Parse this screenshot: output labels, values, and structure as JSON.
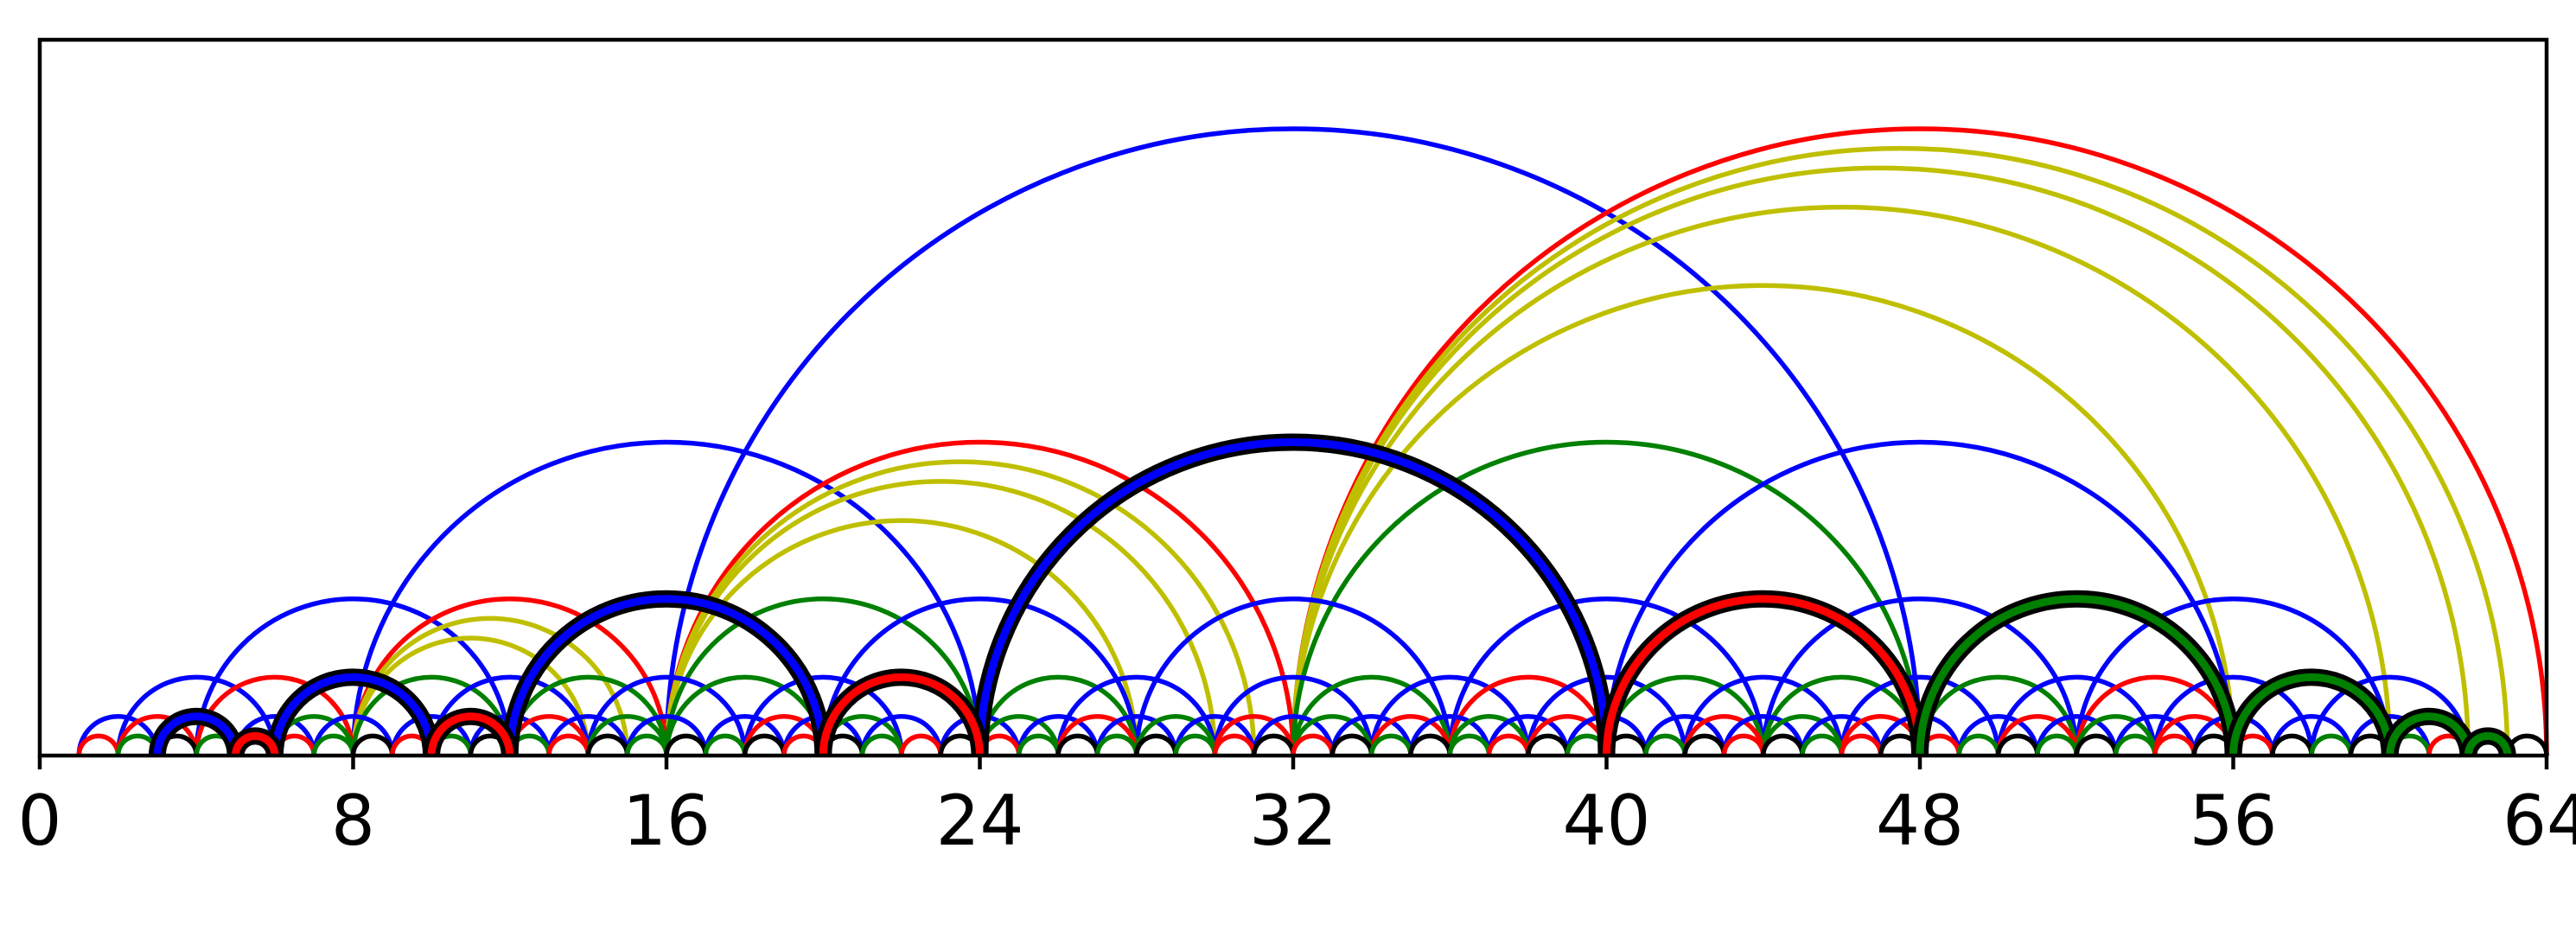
{
  "chart_data": {
    "type": "arc-diagram",
    "title": "",
    "xlabel": "",
    "ylabel": "",
    "xlim": [
      0,
      64
    ],
    "xticks": [
      0,
      8,
      16,
      24,
      32,
      40,
      48,
      56,
      64
    ],
    "xtick_labels": [
      "0",
      "8",
      "16",
      "24",
      "32",
      "40",
      "48",
      "56",
      "64"
    ],
    "colors": {
      "blue": "#0000ff",
      "red": "#ff0000",
      "green": "#008000",
      "yellow": "#bfbf00",
      "black": "#000000"
    },
    "regular_arcs": [
      {
        "from": 16,
        "to": 48,
        "color": "blue"
      },
      {
        "from": 32,
        "to": 64,
        "color": "red"
      },
      {
        "from": 32,
        "to": 63,
        "color": "yellow"
      },
      {
        "from": 32,
        "to": 62,
        "color": "yellow"
      },
      {
        "from": 32,
        "to": 60,
        "color": "yellow"
      },
      {
        "from": 32,
        "to": 56,
        "color": "yellow"
      },
      {
        "from": 8,
        "to": 24,
        "color": "blue"
      },
      {
        "from": 16,
        "to": 32,
        "color": "red"
      },
      {
        "from": 16,
        "to": 31,
        "color": "yellow"
      },
      {
        "from": 16,
        "to": 30,
        "color": "yellow"
      },
      {
        "from": 16,
        "to": 28,
        "color": "yellow"
      },
      {
        "from": 32,
        "to": 48,
        "color": "green"
      },
      {
        "from": 40,
        "to": 56,
        "color": "blue"
      },
      {
        "from": 4,
        "to": 12,
        "color": "blue"
      },
      {
        "from": 8,
        "to": 16,
        "color": "red"
      },
      {
        "from": 8,
        "to": 15,
        "color": "yellow"
      },
      {
        "from": 8,
        "to": 14,
        "color": "yellow"
      },
      {
        "from": 16,
        "to": 24,
        "color": "green"
      },
      {
        "from": 20,
        "to": 28,
        "color": "blue"
      },
      {
        "from": 28,
        "to": 36,
        "color": "blue"
      },
      {
        "from": 36,
        "to": 44,
        "color": "blue"
      },
      {
        "from": 44,
        "to": 52,
        "color": "blue"
      },
      {
        "from": 52,
        "to": 60,
        "color": "blue"
      },
      {
        "from": 2,
        "to": 6,
        "color": "blue"
      },
      {
        "from": 4,
        "to": 8,
        "color": "red"
      },
      {
        "from": 8,
        "to": 12,
        "color": "green"
      },
      {
        "from": 10,
        "to": 14,
        "color": "blue"
      },
      {
        "from": 12,
        "to": 16,
        "color": "green"
      },
      {
        "from": 14,
        "to": 18,
        "color": "blue"
      },
      {
        "from": 16,
        "to": 20,
        "color": "green"
      },
      {
        "from": 18,
        "to": 22,
        "color": "blue"
      },
      {
        "from": 20,
        "to": 24,
        "color": "green"
      },
      {
        "from": 24,
        "to": 28,
        "color": "green"
      },
      {
        "from": 26,
        "to": 30,
        "color": "blue"
      },
      {
        "from": 30,
        "to": 34,
        "color": "blue"
      },
      {
        "from": 32,
        "to": 36,
        "color": "green"
      },
      {
        "from": 34,
        "to": 38,
        "color": "blue"
      },
      {
        "from": 36,
        "to": 40,
        "color": "red"
      },
      {
        "from": 38,
        "to": 42,
        "color": "blue"
      },
      {
        "from": 40,
        "to": 44,
        "color": "green"
      },
      {
        "from": 42,
        "to": 46,
        "color": "blue"
      },
      {
        "from": 44,
        "to": 48,
        "color": "green"
      },
      {
        "from": 46,
        "to": 50,
        "color": "blue"
      },
      {
        "from": 48,
        "to": 52,
        "color": "green"
      },
      {
        "from": 50,
        "to": 54,
        "color": "blue"
      },
      {
        "from": 52,
        "to": 56,
        "color": "red"
      },
      {
        "from": 54,
        "to": 58,
        "color": "blue"
      },
      {
        "from": 58,
        "to": 62,
        "color": "blue"
      },
      {
        "from": 1,
        "to": 3,
        "color": "blue"
      },
      {
        "from": 2,
        "to": 4,
        "color": "red"
      },
      {
        "from": 5,
        "to": 7,
        "color": "blue"
      },
      {
        "from": 6,
        "to": 8,
        "color": "green"
      },
      {
        "from": 7,
        "to": 9,
        "color": "blue"
      },
      {
        "from": 9,
        "to": 11,
        "color": "blue"
      },
      {
        "from": 11,
        "to": 13,
        "color": "blue"
      },
      {
        "from": 12,
        "to": 14,
        "color": "red"
      },
      {
        "from": 13,
        "to": 15,
        "color": "blue"
      },
      {
        "from": 14,
        "to": 16,
        "color": "green"
      },
      {
        "from": 15,
        "to": 17,
        "color": "blue"
      },
      {
        "from": 17,
        "to": 19,
        "color": "blue"
      },
      {
        "from": 18,
        "to": 20,
        "color": "red"
      },
      {
        "from": 19,
        "to": 21,
        "color": "blue"
      },
      {
        "from": 20,
        "to": 22,
        "color": "green"
      },
      {
        "from": 21,
        "to": 23,
        "color": "blue"
      },
      {
        "from": 23,
        "to": 25,
        "color": "blue"
      },
      {
        "from": 24,
        "to": 26,
        "color": "green"
      },
      {
        "from": 25,
        "to": 27,
        "color": "blue"
      },
      {
        "from": 26,
        "to": 28,
        "color": "red"
      },
      {
        "from": 27,
        "to": 29,
        "color": "blue"
      },
      {
        "from": 28,
        "to": 30,
        "color": "green"
      },
      {
        "from": 29,
        "to": 31,
        "color": "blue"
      },
      {
        "from": 30,
        "to": 32,
        "color": "red"
      },
      {
        "from": 31,
        "to": 33,
        "color": "blue"
      },
      {
        "from": 32,
        "to": 34,
        "color": "green"
      },
      {
        "from": 33,
        "to": 35,
        "color": "blue"
      },
      {
        "from": 34,
        "to": 36,
        "color": "red"
      },
      {
        "from": 35,
        "to": 37,
        "color": "blue"
      },
      {
        "from": 36,
        "to": 38,
        "color": "green"
      },
      {
        "from": 37,
        "to": 39,
        "color": "blue"
      },
      {
        "from": 38,
        "to": 40,
        "color": "red"
      },
      {
        "from": 39,
        "to": 41,
        "color": "blue"
      },
      {
        "from": 41,
        "to": 43,
        "color": "blue"
      },
      {
        "from": 42,
        "to": 44,
        "color": "red"
      },
      {
        "from": 43,
        "to": 45,
        "color": "blue"
      },
      {
        "from": 44,
        "to": 46,
        "color": "green"
      },
      {
        "from": 45,
        "to": 47,
        "color": "blue"
      },
      {
        "from": 46,
        "to": 48,
        "color": "red"
      },
      {
        "from": 47,
        "to": 49,
        "color": "blue"
      },
      {
        "from": 49,
        "to": 51,
        "color": "blue"
      },
      {
        "from": 50,
        "to": 52,
        "color": "red"
      },
      {
        "from": 51,
        "to": 53,
        "color": "blue"
      },
      {
        "from": 52,
        "to": 54,
        "color": "green"
      },
      {
        "from": 53,
        "to": 55,
        "color": "blue"
      },
      {
        "from": 54,
        "to": 56,
        "color": "red"
      },
      {
        "from": 55,
        "to": 57,
        "color": "blue"
      },
      {
        "from": 57,
        "to": 59,
        "color": "blue"
      },
      {
        "from": 59,
        "to": 61,
        "color": "blue"
      },
      {
        "from": 1,
        "to": 2,
        "color": "red"
      },
      {
        "from": 2,
        "to": 3,
        "color": "green"
      },
      {
        "from": 3,
        "to": 4,
        "color": "black"
      },
      {
        "from": 4,
        "to": 5,
        "color": "green"
      },
      {
        "from": 5,
        "to": 6,
        "color": "black"
      },
      {
        "from": 6,
        "to": 7,
        "color": "red"
      },
      {
        "from": 7,
        "to": 8,
        "color": "green"
      },
      {
        "from": 8,
        "to": 9,
        "color": "black"
      },
      {
        "from": 9,
        "to": 10,
        "color": "red"
      },
      {
        "from": 10,
        "to": 11,
        "color": "green"
      },
      {
        "from": 11,
        "to": 12,
        "color": "black"
      },
      {
        "from": 12,
        "to": 13,
        "color": "green"
      },
      {
        "from": 13,
        "to": 14,
        "color": "red"
      },
      {
        "from": 14,
        "to": 15,
        "color": "black"
      },
      {
        "from": 15,
        "to": 16,
        "color": "green"
      },
      {
        "from": 16,
        "to": 17,
        "color": "black"
      },
      {
        "from": 17,
        "to": 18,
        "color": "green"
      },
      {
        "from": 18,
        "to": 19,
        "color": "black"
      },
      {
        "from": 19,
        "to": 20,
        "color": "red"
      },
      {
        "from": 20,
        "to": 21,
        "color": "black"
      },
      {
        "from": 21,
        "to": 22,
        "color": "green"
      },
      {
        "from": 22,
        "to": 23,
        "color": "red"
      },
      {
        "from": 23,
        "to": 24,
        "color": "black"
      },
      {
        "from": 24,
        "to": 25,
        "color": "red"
      },
      {
        "from": 25,
        "to": 26,
        "color": "green"
      },
      {
        "from": 26,
        "to": 27,
        "color": "black"
      },
      {
        "from": 27,
        "to": 28,
        "color": "green"
      },
      {
        "from": 28,
        "to": 29,
        "color": "black"
      },
      {
        "from": 29,
        "to": 30,
        "color": "green"
      },
      {
        "from": 30,
        "to": 31,
        "color": "red"
      },
      {
        "from": 31,
        "to": 32,
        "color": "black"
      },
      {
        "from": 32,
        "to": 33,
        "color": "red"
      },
      {
        "from": 33,
        "to": 34,
        "color": "black"
      },
      {
        "from": 34,
        "to": 35,
        "color": "green"
      },
      {
        "from": 35,
        "to": 36,
        "color": "black"
      },
      {
        "from": 36,
        "to": 37,
        "color": "green"
      },
      {
        "from": 37,
        "to": 38,
        "color": "red"
      },
      {
        "from": 38,
        "to": 39,
        "color": "black"
      },
      {
        "from": 39,
        "to": 40,
        "color": "green"
      },
      {
        "from": 40,
        "to": 41,
        "color": "black"
      },
      {
        "from": 41,
        "to": 42,
        "color": "green"
      },
      {
        "from": 42,
        "to": 43,
        "color": "black"
      },
      {
        "from": 43,
        "to": 44,
        "color": "red"
      },
      {
        "from": 44,
        "to": 45,
        "color": "black"
      },
      {
        "from": 45,
        "to": 46,
        "color": "green"
      },
      {
        "from": 46,
        "to": 47,
        "color": "red"
      },
      {
        "from": 47,
        "to": 48,
        "color": "black"
      },
      {
        "from": 48,
        "to": 49,
        "color": "red"
      },
      {
        "from": 49,
        "to": 50,
        "color": "green"
      },
      {
        "from": 50,
        "to": 51,
        "color": "black"
      },
      {
        "from": 51,
        "to": 52,
        "color": "green"
      },
      {
        "from": 52,
        "to": 53,
        "color": "black"
      },
      {
        "from": 53,
        "to": 54,
        "color": "green"
      },
      {
        "from": 54,
        "to": 55,
        "color": "red"
      },
      {
        "from": 55,
        "to": 56,
        "color": "black"
      },
      {
        "from": 56,
        "to": 57,
        "color": "red"
      },
      {
        "from": 57,
        "to": 58,
        "color": "black"
      },
      {
        "from": 58,
        "to": 59,
        "color": "green"
      },
      {
        "from": 59,
        "to": 60,
        "color": "black"
      },
      {
        "from": 60,
        "to": 61,
        "color": "green"
      },
      {
        "from": 61,
        "to": 62,
        "color": "red"
      },
      {
        "from": 62,
        "to": 63,
        "color": "green"
      },
      {
        "from": 63,
        "to": 64,
        "color": "black"
      }
    ],
    "highlighted_arcs": [
      {
        "from": 24,
        "to": 40,
        "color": "blue"
      },
      {
        "from": 12,
        "to": 20,
        "color": "blue"
      },
      {
        "from": 40,
        "to": 48,
        "color": "red"
      },
      {
        "from": 48,
        "to": 56,
        "color": "green"
      },
      {
        "from": 6,
        "to": 10,
        "color": "blue"
      },
      {
        "from": 20,
        "to": 24,
        "color": "red"
      },
      {
        "from": 56,
        "to": 60,
        "color": "green"
      },
      {
        "from": 3,
        "to": 5,
        "color": "blue"
      },
      {
        "from": 10,
        "to": 12,
        "color": "red"
      },
      {
        "from": 60,
        "to": 62,
        "color": "green"
      },
      {
        "from": 5,
        "to": 6,
        "color": "red"
      },
      {
        "from": 62,
        "to": 63,
        "color": "green"
      }
    ]
  }
}
